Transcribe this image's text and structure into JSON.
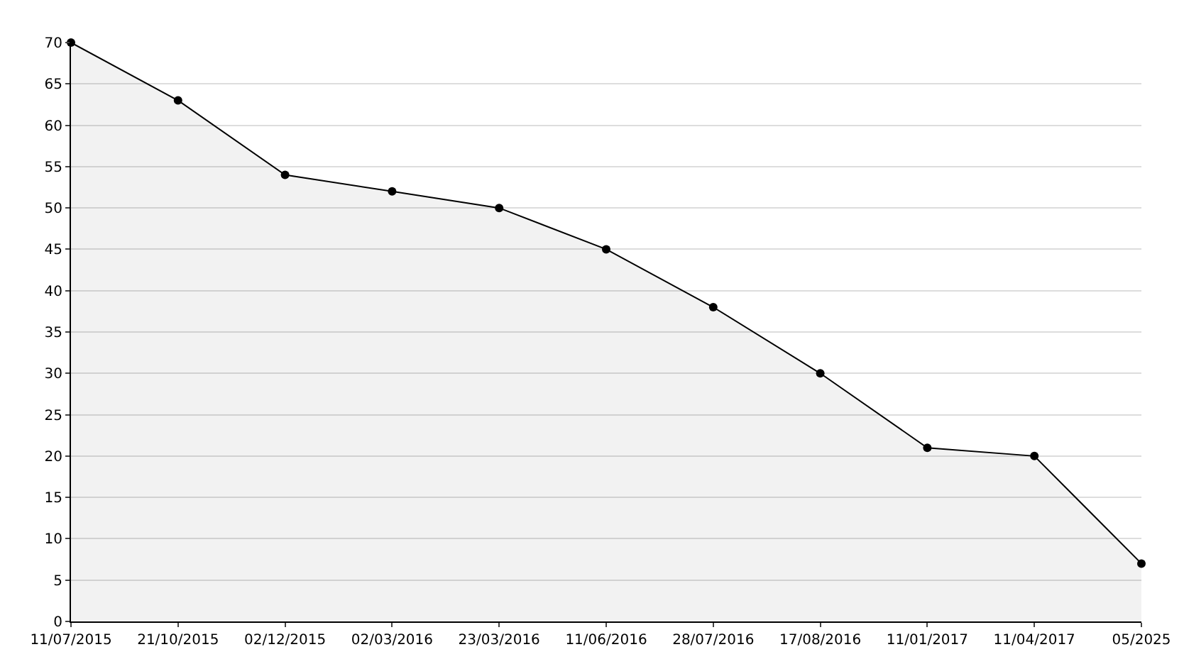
{
  "chart_data": {
    "type": "area",
    "categories": [
      "11/07/2015",
      "21/10/2015",
      "02/12/2015",
      "02/03/2016",
      "23/03/2016",
      "11/06/2016",
      "28/07/2016",
      "17/08/2016",
      "11/01/2017",
      "11/04/2017",
      "05/2025"
    ],
    "series": [
      {
        "color": "#000000",
        "values": [
          70,
          63,
          54,
          52,
          50,
          45,
          38,
          30,
          21,
          20,
          7
        ]
      }
    ],
    "ylim": [
      0,
      70
    ],
    "yticks": [
      0,
      5,
      10,
      15,
      20,
      25,
      30,
      35,
      40,
      45,
      50,
      55,
      60,
      65,
      70
    ],
    "grid": "y",
    "marker": "circle",
    "line_style": "solid"
  }
}
